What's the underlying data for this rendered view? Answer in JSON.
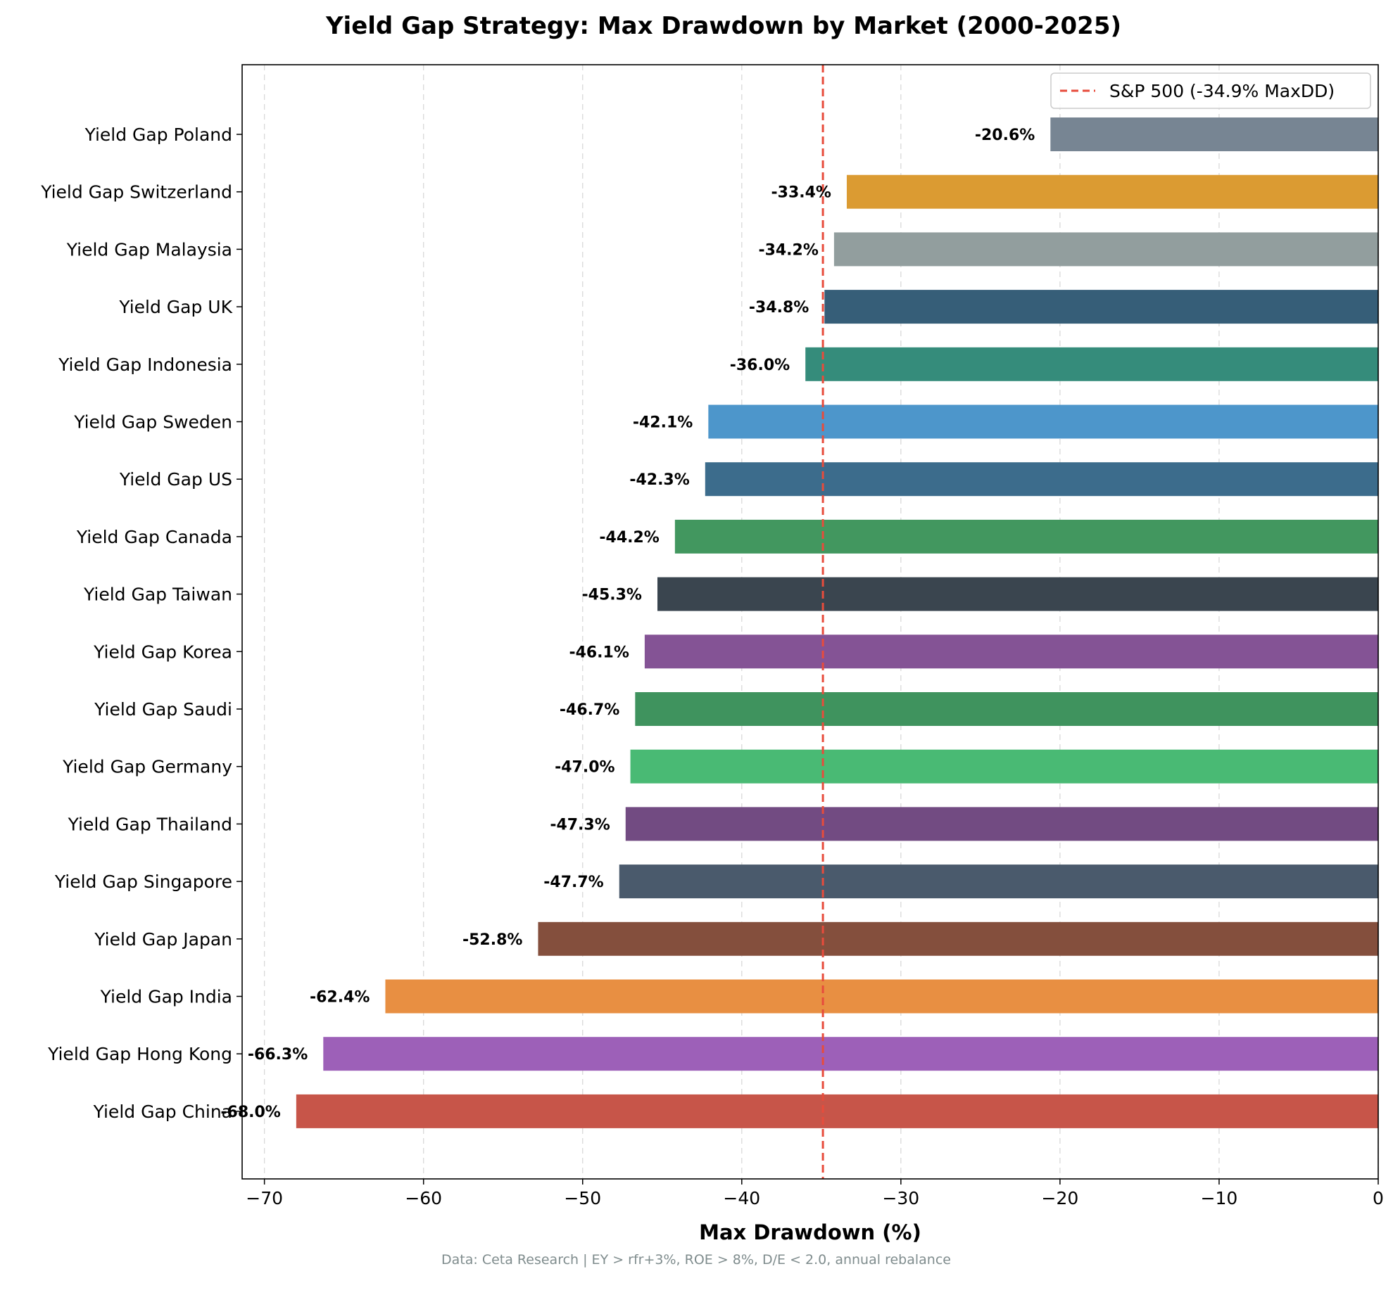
{
  "chart_data": {
    "type": "bar",
    "orientation": "horizontal",
    "title": "Yield Gap Strategy: Max Drawdown by Market (2000-2025)",
    "xlabel": "Max Drawdown (%)",
    "ylabel": "",
    "xlim": [
      -71.4,
      0
    ],
    "xticks": [
      -70,
      -60,
      -50,
      -40,
      -30,
      -20,
      -10,
      0
    ],
    "xtick_labels": [
      "−70",
      "−60",
      "−50",
      "−40",
      "−30",
      "−20",
      "−10",
      "0"
    ],
    "grid": "x-dashed",
    "categories": [
      "Yield Gap Poland",
      "Yield Gap Switzerland",
      "Yield Gap Malaysia",
      "Yield Gap UK",
      "Yield Gap Indonesia",
      "Yield Gap Sweden",
      "Yield Gap US",
      "Yield Gap Canada",
      "Yield Gap Taiwan",
      "Yield Gap Korea",
      "Yield Gap Saudi",
      "Yield Gap Germany",
      "Yield Gap Thailand",
      "Yield Gap Singapore",
      "Yield Gap Japan",
      "Yield Gap India",
      "Yield Gap Hong Kong",
      "Yield Gap China"
    ],
    "values": [
      -20.6,
      -33.4,
      -34.2,
      -34.8,
      -36.0,
      -42.1,
      -42.3,
      -44.2,
      -45.3,
      -46.1,
      -46.7,
      -47.0,
      -47.3,
      -47.7,
      -52.8,
      -62.4,
      -66.3,
      -68.0
    ],
    "value_labels": [
      "-20.6%",
      "-33.4%",
      "-34.2%",
      "-34.8%",
      "-36.0%",
      "-42.1%",
      "-42.3%",
      "-44.2%",
      "-45.3%",
      "-46.1%",
      "-46.7%",
      "-47.0%",
      "-47.3%",
      "-47.7%",
      "-52.8%",
      "-62.4%",
      "-66.3%",
      "-68.0%"
    ],
    "colors": [
      "#778593",
      "#db9b32",
      "#929e9e",
      "#365e78",
      "#358c7b",
      "#4d96cb",
      "#3c6c8c",
      "#42975f",
      "#3a454f",
      "#845395",
      "#3f935e",
      "#49ba74",
      "#724b82",
      "#4a5a6c",
      "#844f3d",
      "#e88f42",
      "#9d60b8",
      "#c75549"
    ],
    "reference_line": {
      "value": -34.9,
      "label": "S&P 500 (-34.9% MaxDD)",
      "color": "#e74c3c",
      "style": "dashed"
    },
    "legend_position": "top-right",
    "footnote": "Data: Ceta Research | EY > rfr+3%, ROE > 8%, D/E < 2.0, annual rebalance"
  }
}
